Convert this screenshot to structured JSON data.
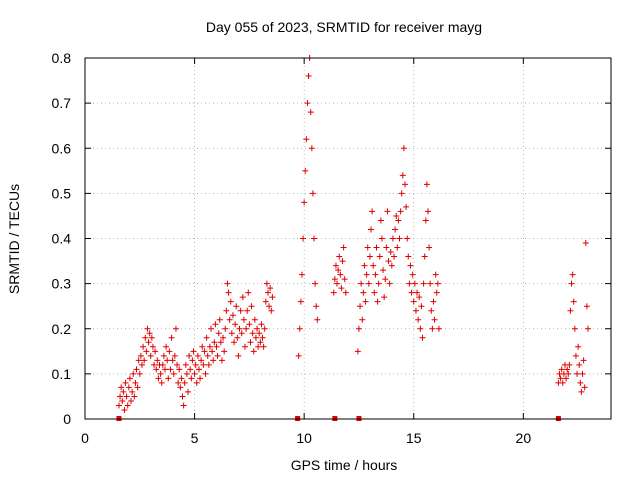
{
  "chart_data": {
    "type": "scatter",
    "title": "Day 055 of 2023, SRMTID for receiver mayg",
    "xlabel": "GPS time / hours",
    "ylabel": "SRMTID / TECUs",
    "xlim": [
      0,
      24
    ],
    "ylim": [
      0,
      0.8
    ],
    "xticks": [
      0,
      5,
      10,
      15,
      20
    ],
    "yticks": [
      0,
      0.1,
      0.2,
      0.3,
      0.4,
      0.5,
      0.6,
      0.7,
      0.8
    ],
    "xtick_labels": [
      "0",
      "5",
      "10",
      "15",
      "20"
    ],
    "ytick_labels": [
      "0",
      "0.1",
      "0.2",
      "0.3",
      "0.4",
      "0.5",
      "0.6",
      "0.7",
      "0.8"
    ],
    "grid": true,
    "marker": "+",
    "color": "#e00000",
    "series": [
      {
        "name": "SRMTID",
        "points": [
          [
            1.55,
            0.03
          ],
          [
            1.6,
            0.05
          ],
          [
            1.65,
            0.07
          ],
          [
            1.7,
            0.04
          ],
          [
            1.75,
            0.06
          ],
          [
            1.8,
            0.02
          ],
          [
            1.85,
            0.08
          ],
          [
            1.9,
            0.05
          ],
          [
            1.95,
            0.03
          ],
          [
            2.0,
            0.07
          ],
          [
            2.05,
            0.09
          ],
          [
            2.1,
            0.04
          ],
          [
            2.15,
            0.06
          ],
          [
            2.2,
            0.1
          ],
          [
            2.25,
            0.05
          ],
          [
            2.3,
            0.08
          ],
          [
            2.35,
            0.11
          ],
          [
            2.4,
            0.07
          ],
          [
            2.45,
            0.13
          ],
          [
            2.5,
            0.1
          ],
          [
            2.55,
            0.14
          ],
          [
            2.6,
            0.12
          ],
          [
            2.65,
            0.16
          ],
          [
            2.7,
            0.13
          ],
          [
            2.75,
            0.18
          ],
          [
            2.8,
            0.15
          ],
          [
            2.85,
            0.2
          ],
          [
            2.9,
            0.17
          ],
          [
            2.95,
            0.19
          ],
          [
            3.0,
            0.14
          ],
          [
            3.05,
            0.18
          ],
          [
            3.1,
            0.16
          ],
          [
            3.15,
            0.12
          ],
          [
            3.2,
            0.15
          ],
          [
            3.25,
            0.11
          ],
          [
            3.3,
            0.13
          ],
          [
            3.35,
            0.09
          ],
          [
            3.4,
            0.12
          ],
          [
            3.45,
            0.1
          ],
          [
            3.5,
            0.08
          ],
          [
            3.55,
            0.12
          ],
          [
            3.6,
            0.14
          ],
          [
            3.65,
            0.11
          ],
          [
            3.7,
            0.16
          ],
          [
            3.75,
            0.13
          ],
          [
            3.8,
            0.09
          ],
          [
            3.85,
            0.15
          ],
          [
            3.9,
            0.11
          ],
          [
            3.95,
            0.18
          ],
          [
            4.0,
            0.13
          ],
          [
            4.05,
            0.1
          ],
          [
            4.1,
            0.14
          ],
          [
            4.15,
            0.2
          ],
          [
            4.2,
            0.12
          ],
          [
            4.25,
            0.08
          ],
          [
            4.3,
            0.11
          ],
          [
            4.35,
            0.07
          ],
          [
            4.4,
            0.09
          ],
          [
            4.45,
            0.05
          ],
          [
            4.5,
            0.03
          ],
          [
            4.55,
            0.08
          ],
          [
            4.6,
            0.12
          ],
          [
            4.65,
            0.1
          ],
          [
            4.7,
            0.06
          ],
          [
            4.75,
            0.14
          ],
          [
            4.8,
            0.11
          ],
          [
            4.85,
            0.09
          ],
          [
            4.9,
            0.13
          ],
          [
            4.95,
            0.15
          ],
          [
            5.0,
            0.1
          ],
          [
            5.05,
            0.12
          ],
          [
            5.1,
            0.08
          ],
          [
            5.15,
            0.14
          ],
          [
            5.2,
            0.11
          ],
          [
            5.25,
            0.09
          ],
          [
            5.3,
            0.13
          ],
          [
            5.35,
            0.16
          ],
          [
            5.4,
            0.12
          ],
          [
            5.45,
            0.15
          ],
          [
            5.5,
            0.1
          ],
          [
            5.55,
            0.18
          ],
          [
            5.6,
            0.14
          ],
          [
            5.65,
            0.12
          ],
          [
            5.7,
            0.16
          ],
          [
            5.75,
            0.2
          ],
          [
            5.8,
            0.15
          ],
          [
            5.85,
            0.13
          ],
          [
            5.9,
            0.17
          ],
          [
            5.95,
            0.21
          ],
          [
            6.0,
            0.16
          ],
          [
            6.05,
            0.14
          ],
          [
            6.1,
            0.19
          ],
          [
            6.15,
            0.22
          ],
          [
            6.2,
            0.17
          ],
          [
            6.25,
            0.13
          ],
          [
            6.3,
            0.18
          ],
          [
            6.35,
            0.15
          ],
          [
            6.4,
            0.2
          ],
          [
            6.45,
            0.24
          ],
          [
            6.5,
            0.3
          ],
          [
            6.55,
            0.28
          ],
          [
            6.6,
            0.22
          ],
          [
            6.65,
            0.26
          ],
          [
            6.7,
            0.19
          ],
          [
            6.75,
            0.23
          ],
          [
            6.8,
            0.17
          ],
          [
            6.85,
            0.21
          ],
          [
            6.9,
            0.25
          ],
          [
            6.95,
            0.18
          ],
          [
            7.0,
            0.14
          ],
          [
            7.05,
            0.2
          ],
          [
            7.1,
            0.24
          ],
          [
            7.15,
            0.19
          ],
          [
            7.2,
            0.27
          ],
          [
            7.25,
            0.22
          ],
          [
            7.3,
            0.16
          ],
          [
            7.35,
            0.2
          ],
          [
            7.4,
            0.24
          ],
          [
            7.45,
            0.28
          ],
          [
            7.5,
            0.21
          ],
          [
            7.55,
            0.17
          ],
          [
            7.6,
            0.25
          ],
          [
            7.65,
            0.19
          ],
          [
            7.7,
            0.15
          ],
          [
            7.75,
            0.22
          ],
          [
            7.8,
            0.18
          ],
          [
            7.85,
            0.2
          ],
          [
            7.9,
            0.16
          ],
          [
            7.95,
            0.19
          ],
          [
            8.0,
            0.17
          ],
          [
            8.05,
            0.21
          ],
          [
            8.1,
            0.18
          ],
          [
            8.15,
            0.16
          ],
          [
            8.2,
            0.2
          ],
          [
            8.25,
            0.26
          ],
          [
            8.3,
            0.3
          ],
          [
            8.35,
            0.28
          ],
          [
            8.4,
            0.25
          ],
          [
            8.45,
            0.29
          ],
          [
            8.5,
            0.24
          ],
          [
            8.55,
            0.27
          ],
          [
            9.75,
            0.14
          ],
          [
            9.8,
            0.2
          ],
          [
            9.85,
            0.26
          ],
          [
            9.9,
            0.32
          ],
          [
            9.95,
            0.4
          ],
          [
            10.0,
            0.48
          ],
          [
            10.05,
            0.55
          ],
          [
            10.1,
            0.62
          ],
          [
            10.15,
            0.7
          ],
          [
            10.2,
            0.76
          ],
          [
            10.25,
            0.8
          ],
          [
            10.3,
            0.68
          ],
          [
            10.35,
            0.6
          ],
          [
            10.4,
            0.5
          ],
          [
            10.45,
            0.4
          ],
          [
            10.5,
            0.3
          ],
          [
            10.55,
            0.25
          ],
          [
            10.6,
            0.22
          ],
          [
            11.35,
            0.28
          ],
          [
            11.4,
            0.31
          ],
          [
            11.45,
            0.34
          ],
          [
            11.5,
            0.3
          ],
          [
            11.55,
            0.33
          ],
          [
            11.6,
            0.36
          ],
          [
            11.65,
            0.32
          ],
          [
            11.7,
            0.29
          ],
          [
            11.75,
            0.35
          ],
          [
            11.8,
            0.38
          ],
          [
            11.85,
            0.31
          ],
          [
            11.9,
            0.28
          ],
          [
            12.45,
            0.15
          ],
          [
            12.5,
            0.2
          ],
          [
            12.55,
            0.25
          ],
          [
            12.6,
            0.3
          ],
          [
            12.65,
            0.22
          ],
          [
            12.7,
            0.28
          ],
          [
            12.75,
            0.34
          ],
          [
            12.8,
            0.26
          ],
          [
            12.85,
            0.32
          ],
          [
            12.9,
            0.38
          ],
          [
            12.95,
            0.3
          ],
          [
            13.0,
            0.36
          ],
          [
            13.05,
            0.42
          ],
          [
            13.1,
            0.46
          ],
          [
            13.15,
            0.34
          ],
          [
            13.2,
            0.28
          ],
          [
            13.25,
            0.32
          ],
          [
            13.3,
            0.38
          ],
          [
            13.35,
            0.26
          ],
          [
            13.4,
            0.3
          ],
          [
            13.45,
            0.36
          ],
          [
            13.5,
            0.44
          ],
          [
            13.55,
            0.4
          ],
          [
            13.6,
            0.33
          ],
          [
            13.65,
            0.27
          ],
          [
            13.7,
            0.31
          ],
          [
            13.75,
            0.38
          ],
          [
            13.8,
            0.46
          ],
          [
            13.85,
            0.35
          ],
          [
            13.9,
            0.3
          ],
          [
            13.95,
            0.37
          ],
          [
            14.0,
            0.34
          ],
          [
            14.05,
            0.4
          ],
          [
            14.1,
            0.36
          ],
          [
            14.15,
            0.42
          ],
          [
            14.2,
            0.45
          ],
          [
            14.25,
            0.38
          ],
          [
            14.3,
            0.44
          ],
          [
            14.35,
            0.4
          ],
          [
            14.4,
            0.46
          ],
          [
            14.45,
            0.5
          ],
          [
            14.5,
            0.54
          ],
          [
            14.55,
            0.6
          ],
          [
            14.6,
            0.52
          ],
          [
            14.65,
            0.47
          ],
          [
            14.7,
            0.4
          ],
          [
            14.75,
            0.36
          ],
          [
            14.8,
            0.3
          ],
          [
            14.85,
            0.34
          ],
          [
            14.9,
            0.28
          ],
          [
            14.95,
            0.32
          ],
          [
            15.0,
            0.26
          ],
          [
            15.05,
            0.3
          ],
          [
            15.1,
            0.24
          ],
          [
            15.15,
            0.28
          ],
          [
            15.2,
            0.22
          ],
          [
            15.25,
            0.27
          ],
          [
            15.3,
            0.2
          ],
          [
            15.35,
            0.25
          ],
          [
            15.4,
            0.18
          ],
          [
            15.45,
            0.3
          ],
          [
            15.5,
            0.36
          ],
          [
            15.55,
            0.44
          ],
          [
            15.6,
            0.52
          ],
          [
            15.65,
            0.46
          ],
          [
            15.7,
            0.38
          ],
          [
            15.75,
            0.3
          ],
          [
            15.8,
            0.24
          ],
          [
            15.85,
            0.2
          ],
          [
            15.9,
            0.26
          ],
          [
            15.95,
            0.22
          ],
          [
            16.0,
            0.32
          ],
          [
            16.05,
            0.28
          ],
          [
            16.1,
            0.3
          ],
          [
            16.15,
            0.2
          ],
          [
            21.6,
            0.08
          ],
          [
            21.65,
            0.1
          ],
          [
            21.7,
            0.09
          ],
          [
            21.75,
            0.11
          ],
          [
            21.8,
            0.08
          ],
          [
            21.85,
            0.1
          ],
          [
            21.9,
            0.12
          ],
          [
            21.95,
            0.09
          ],
          [
            22.0,
            0.11
          ],
          [
            22.05,
            0.1
          ],
          [
            22.1,
            0.12
          ],
          [
            22.15,
            0.24
          ],
          [
            22.2,
            0.3
          ],
          [
            22.25,
            0.32
          ],
          [
            22.3,
            0.26
          ],
          [
            22.35,
            0.2
          ],
          [
            22.4,
            0.14
          ],
          [
            22.45,
            0.1
          ],
          [
            22.5,
            0.16
          ],
          [
            22.55,
            0.12
          ],
          [
            22.6,
            0.08
          ],
          [
            22.65,
            0.06
          ],
          [
            22.7,
            0.1
          ],
          [
            22.75,
            0.13
          ],
          [
            22.8,
            0.07
          ],
          [
            22.85,
            0.39
          ],
          [
            22.9,
            0.25
          ],
          [
            22.95,
            0.2
          ]
        ]
      },
      {
        "name": "gap-markers",
        "points": [
          [
            1.55,
            0
          ],
          [
            9.7,
            0
          ],
          [
            11.4,
            0
          ],
          [
            12.5,
            0
          ],
          [
            21.6,
            0
          ]
        ]
      }
    ]
  }
}
